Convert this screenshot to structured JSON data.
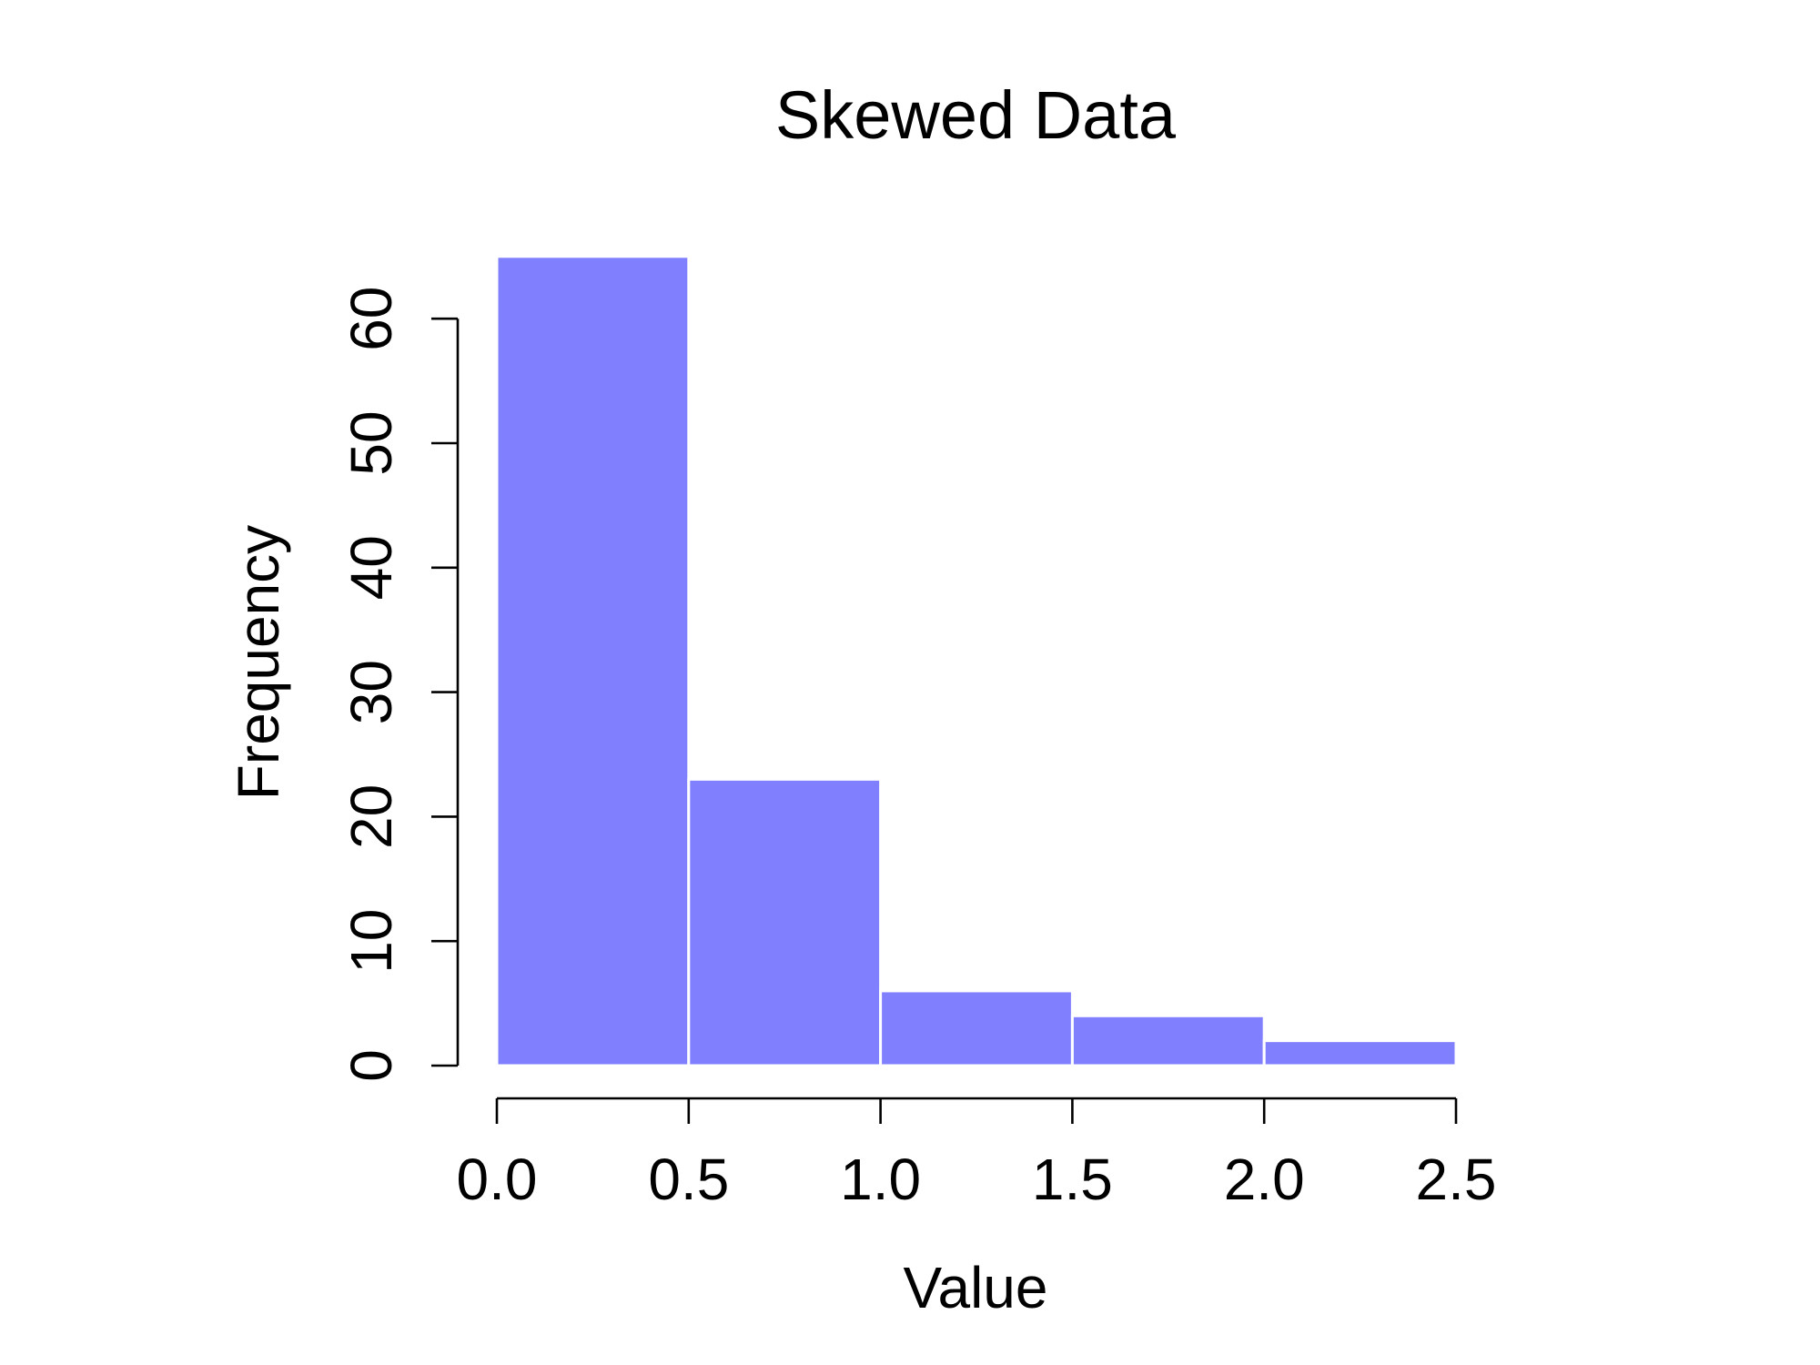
{
  "chart_data": {
    "type": "bar",
    "title": "Skewed Data",
    "xlabel": "Value",
    "ylabel": "Frequency",
    "bins": [
      {
        "from": 0.0,
        "to": 0.5,
        "count": 65
      },
      {
        "from": 0.5,
        "to": 1.0,
        "count": 23
      },
      {
        "from": 1.0,
        "to": 1.5,
        "count": 6
      },
      {
        "from": 1.5,
        "to": 2.0,
        "count": 4
      },
      {
        "from": 2.0,
        "to": 2.5,
        "count": 2
      }
    ],
    "xlim": [
      0,
      2.5
    ],
    "ylim": [
      0,
      65
    ],
    "xticks": [
      "0.0",
      "0.5",
      "1.0",
      "1.5",
      "2.0",
      "2.5"
    ],
    "yticks": [
      "0",
      "10",
      "20",
      "30",
      "40",
      "50",
      "60"
    ],
    "grid": false,
    "colors": {
      "bar_fill": "#8080ff",
      "bar_border": "#ffffff",
      "axis": "#000000"
    }
  }
}
